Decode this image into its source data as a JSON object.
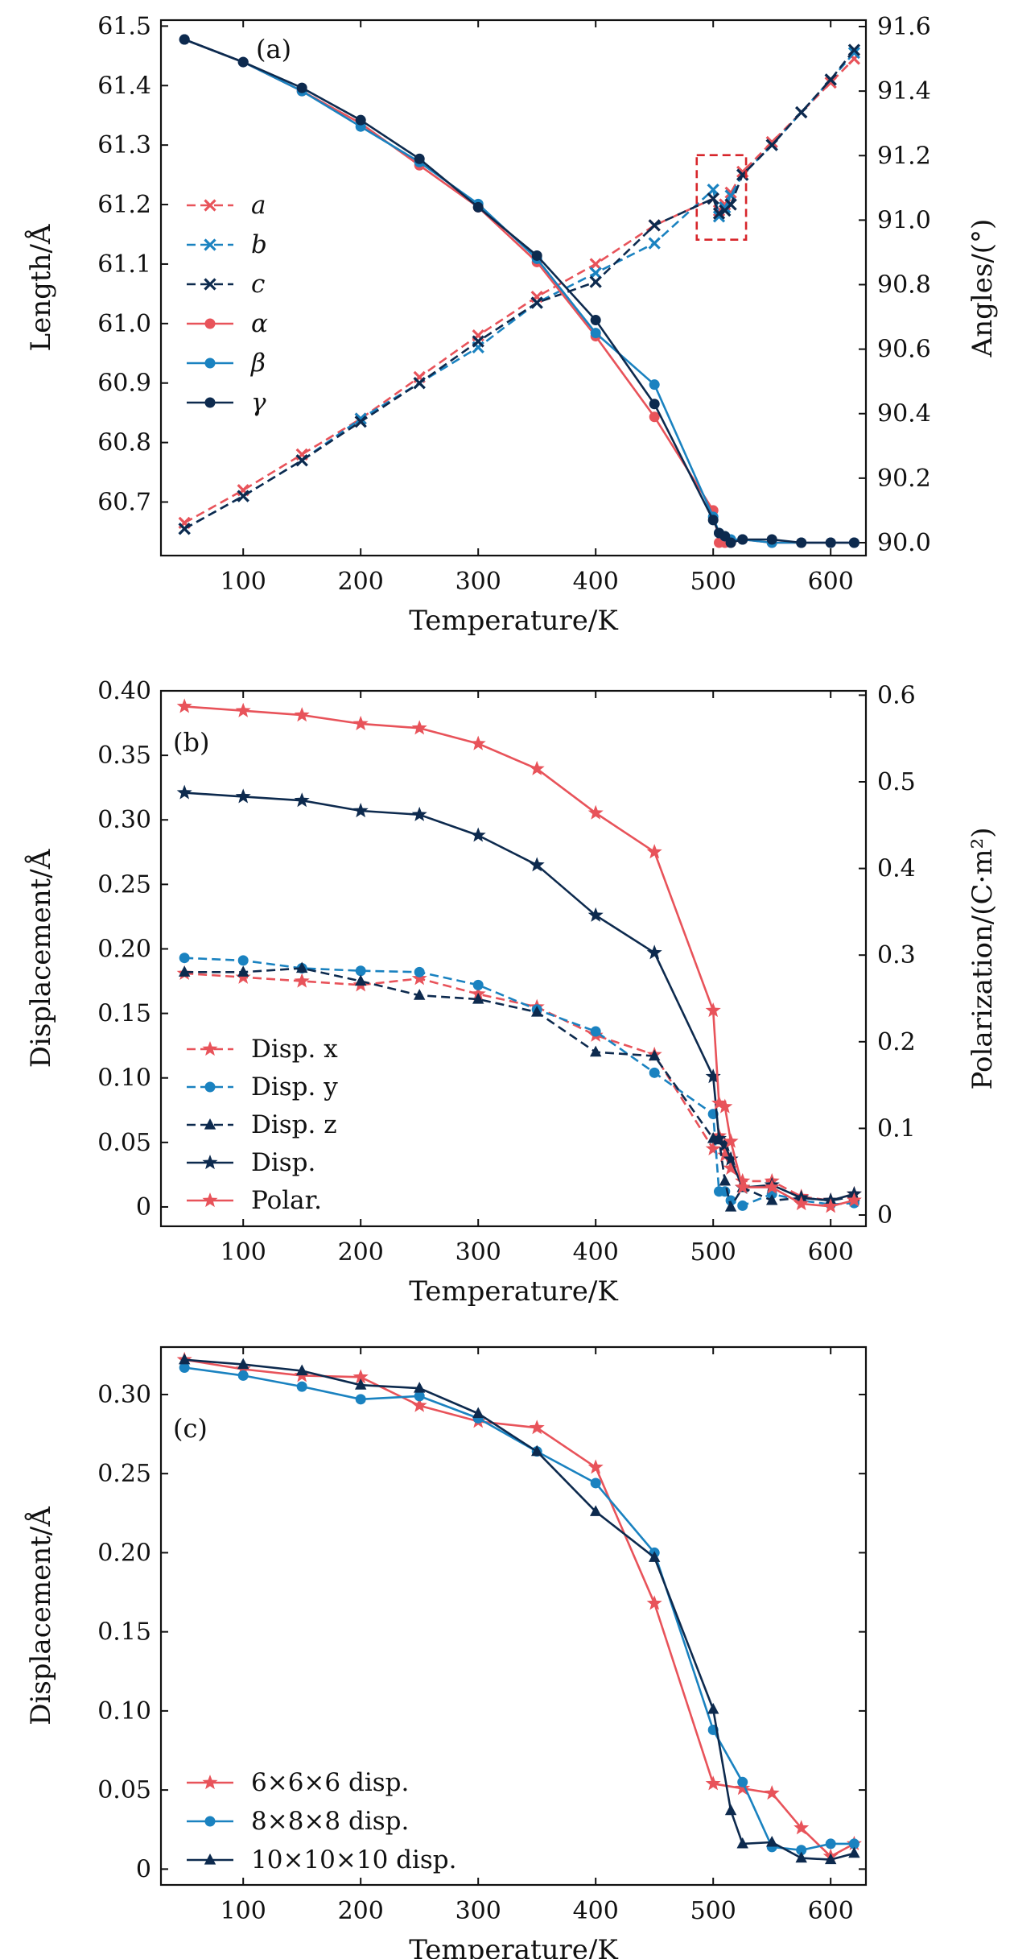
{
  "colors": {
    "red": "#e8535a",
    "blue": "#1a82c0",
    "navy": "#0d2a4e",
    "box": "#d7262b"
  },
  "chart_data": [
    {
      "type": "line",
      "panel_label": "(a)",
      "xlabel": "Temperature/K",
      "ylabel_left": "Length/Å",
      "ylabel_right": "Angles/(°)",
      "xlim": [
        30,
        630
      ],
      "ylim_left": [
        60.61,
        61.51
      ],
      "ylim_right": [
        89.96,
        91.62
      ],
      "xticks": [
        100,
        200,
        300,
        400,
        500,
        600
      ],
      "yticks_left": [
        "60.7",
        "60.8",
        "60.9",
        "61.0",
        "61.1",
        "61.2",
        "61.3",
        "61.4",
        "61.5"
      ],
      "yticks_right": [
        "90.0",
        "90.2",
        "90.4",
        "90.6",
        "90.8",
        "91.0",
        "91.2",
        "91.4",
        "91.6"
      ],
      "annotation_box": {
        "x": [
          486,
          528
        ],
        "y_left": [
          61.141,
          61.283
        ]
      },
      "legend_position": "center-left",
      "series": [
        {
          "name": "a",
          "axis": "left",
          "color": "#e8535a",
          "dash": true,
          "marker": "x",
          "x": [
            50,
            100,
            150,
            200,
            250,
            300,
            350,
            400,
            450,
            500,
            505,
            510,
            515,
            525,
            550,
            575,
            600,
            620
          ],
          "y": [
            60.665,
            60.72,
            60.78,
            60.84,
            60.91,
            60.98,
            61.045,
            61.1,
            61.165,
            61.21,
            61.19,
            61.2,
            61.22,
            61.255,
            61.305,
            61.355,
            61.405,
            61.445
          ]
        },
        {
          "name": "b",
          "axis": "left",
          "color": "#1a82c0",
          "dash": true,
          "marker": "x",
          "x": [
            50,
            100,
            150,
            200,
            250,
            300,
            350,
            400,
            450,
            500,
            505,
            510,
            515,
            525,
            550,
            575,
            600,
            620
          ],
          "y": [
            60.655,
            60.71,
            60.77,
            60.84,
            60.9,
            60.96,
            61.035,
            61.085,
            61.135,
            61.225,
            61.18,
            61.195,
            61.215,
            61.25,
            61.3,
            61.355,
            61.41,
            61.455
          ]
        },
        {
          "name": "c",
          "axis": "left",
          "color": "#0d2a4e",
          "dash": true,
          "marker": "x",
          "x": [
            50,
            100,
            150,
            200,
            250,
            300,
            350,
            400,
            450,
            500,
            505,
            510,
            515,
            525,
            550,
            575,
            600,
            620
          ],
          "y": [
            60.655,
            60.71,
            60.77,
            60.835,
            60.9,
            60.97,
            61.035,
            61.07,
            61.165,
            61.21,
            61.185,
            61.19,
            61.2,
            61.25,
            61.3,
            61.355,
            61.41,
            61.46
          ]
        },
        {
          "name": "α",
          "axis": "right",
          "color": "#e8535a",
          "dash": false,
          "marker": "circle",
          "x": [
            50,
            100,
            150,
            200,
            250,
            300,
            350,
            400,
            450,
            500,
            505,
            510,
            515,
            525,
            550,
            575,
            600,
            620
          ],
          "y": [
            91.56,
            91.49,
            91.4,
            91.3,
            91.17,
            91.04,
            90.87,
            90.64,
            90.39,
            90.1,
            90.0,
            90.0,
            90.0,
            90.01,
            90.0,
            90.0,
            90.0,
            90.0
          ]
        },
        {
          "name": "β",
          "axis": "right",
          "color": "#1a82c0",
          "dash": false,
          "marker": "circle",
          "x": [
            50,
            100,
            150,
            200,
            250,
            300,
            350,
            400,
            450,
            500,
            505,
            510,
            515,
            525,
            550,
            575,
            600,
            620
          ],
          "y": [
            91.56,
            91.49,
            91.4,
            91.29,
            91.18,
            91.05,
            90.88,
            90.65,
            90.49,
            90.08,
            90.03,
            90.02,
            90.01,
            90.01,
            90.0,
            90.0,
            90.0,
            90.0
          ]
        },
        {
          "name": "γ",
          "axis": "right",
          "color": "#0d2a4e",
          "dash": false,
          "marker": "circle",
          "x": [
            50,
            100,
            150,
            200,
            250,
            300,
            350,
            400,
            450,
            500,
            505,
            510,
            515,
            525,
            550,
            575,
            600,
            620
          ],
          "y": [
            91.56,
            91.49,
            91.41,
            91.31,
            91.19,
            91.04,
            90.89,
            90.69,
            90.43,
            90.07,
            90.03,
            90.02,
            90.0,
            90.01,
            90.01,
            90.0,
            90.0,
            90.0
          ]
        }
      ]
    },
    {
      "type": "line",
      "panel_label": "(b)",
      "xlabel": "Temperature/K",
      "ylabel_left": "Displacement/Å",
      "ylabel_right": "Polarization/(C·m²)",
      "xlim": [
        30,
        630
      ],
      "ylim_left": [
        -0.015,
        0.4
      ],
      "ylim_right": [
        -0.013,
        0.605
      ],
      "xticks": [
        100,
        200,
        300,
        400,
        500,
        600
      ],
      "yticks_left": [
        "0",
        "0.05",
        "0.10",
        "0.15",
        "0.20",
        "0.25",
        "0.30",
        "0.35",
        "0.40"
      ],
      "yticks_right": [
        "0",
        "0.1",
        "0.2",
        "0.3",
        "0.4",
        "0.5",
        "0.6"
      ],
      "legend_position": "center-left",
      "series": [
        {
          "name": "Disp. x",
          "axis": "left",
          "color": "#e8535a",
          "dash": true,
          "marker": "star",
          "x": [
            50,
            100,
            150,
            200,
            250,
            300,
            350,
            400,
            450,
            500,
            505,
            510,
            515,
            525,
            550,
            575,
            600,
            620
          ],
          "y": [
            0.181,
            0.178,
            0.175,
            0.172,
            0.177,
            0.165,
            0.155,
            0.133,
            0.118,
            0.045,
            0.055,
            0.04,
            0.03,
            0.02,
            0.02,
            0.008,
            0.005,
            0.01
          ]
        },
        {
          "name": "Disp. y",
          "axis": "left",
          "color": "#1a82c0",
          "dash": true,
          "marker": "circle",
          "x": [
            50,
            100,
            150,
            200,
            250,
            300,
            350,
            400,
            450,
            500,
            505,
            510,
            515,
            525,
            550,
            575,
            600,
            620
          ],
          "y": [
            0.193,
            0.191,
            0.185,
            0.183,
            0.182,
            0.172,
            0.153,
            0.136,
            0.104,
            0.072,
            0.012,
            0.012,
            0.005,
            0.001,
            0.01,
            0.005,
            0.002,
            0.003
          ]
        },
        {
          "name": "Disp. z",
          "axis": "left",
          "color": "#0d2a4e",
          "dash": true,
          "marker": "triangle",
          "x": [
            50,
            100,
            150,
            200,
            250,
            300,
            350,
            400,
            450,
            500,
            505,
            510,
            515,
            525,
            550,
            575,
            600,
            620
          ],
          "y": [
            0.182,
            0.182,
            0.185,
            0.175,
            0.164,
            0.161,
            0.151,
            0.12,
            0.117,
            0.053,
            0.052,
            0.02,
            0.0,
            0.015,
            0.005,
            0.007,
            0.005,
            0.008
          ]
        },
        {
          "name": "Disp.",
          "axis": "left",
          "color": "#0d2a4e",
          "dash": false,
          "marker": "star",
          "x": [
            50,
            100,
            150,
            200,
            250,
            300,
            350,
            400,
            450,
            500,
            505,
            510,
            515,
            525,
            550,
            575,
            600,
            620
          ],
          "y": [
            0.321,
            0.318,
            0.315,
            0.307,
            0.304,
            0.288,
            0.265,
            0.226,
            0.197,
            0.101,
            0.053,
            0.048,
            0.037,
            0.015,
            0.017,
            0.007,
            0.005,
            0.01
          ]
        },
        {
          "name": "Polar.",
          "axis": "right",
          "color": "#e8535a",
          "dash": false,
          "marker": "star",
          "x": [
            50,
            100,
            150,
            200,
            250,
            300,
            350,
            400,
            450,
            500,
            505,
            510,
            515,
            525,
            550,
            575,
            600,
            620
          ],
          "y": [
            0.587,
            0.582,
            0.577,
            0.567,
            0.562,
            0.544,
            0.515,
            0.464,
            0.419,
            0.236,
            0.129,
            0.125,
            0.085,
            0.032,
            0.032,
            0.013,
            0.01,
            0.017
          ]
        }
      ]
    },
    {
      "type": "line",
      "panel_label": "(c)",
      "xlabel": "Temperature/K",
      "ylabel_left": "Displacement/Å",
      "xlim": [
        30,
        630
      ],
      "ylim_left": [
        -0.01,
        0.33
      ],
      "xticks": [
        100,
        200,
        300,
        400,
        500,
        600
      ],
      "yticks_left": [
        "0",
        "0.05",
        "0.10",
        "0.15",
        "0.20",
        "0.25",
        "0.30"
      ],
      "legend_position": "lower-left",
      "series": [
        {
          "name": "6×6×6 disp.",
          "axis": "left",
          "color": "#e8535a",
          "dash": false,
          "marker": "star",
          "x": [
            50,
            100,
            150,
            200,
            250,
            300,
            350,
            400,
            450,
            500,
            525,
            550,
            575,
            600,
            620
          ],
          "y": [
            0.322,
            0.316,
            0.312,
            0.311,
            0.293,
            0.283,
            0.279,
            0.254,
            0.168,
            0.054,
            0.051,
            0.048,
            0.026,
            0.008,
            0.016
          ]
        },
        {
          "name": "8×8×8 disp.",
          "axis": "left",
          "color": "#1a82c0",
          "dash": false,
          "marker": "circle",
          "x": [
            50,
            100,
            150,
            200,
            250,
            300,
            350,
            400,
            450,
            500,
            525,
            550,
            575,
            600,
            620
          ],
          "y": [
            0.317,
            0.312,
            0.305,
            0.297,
            0.299,
            0.285,
            0.264,
            0.244,
            0.2,
            0.088,
            0.055,
            0.014,
            0.012,
            0.016,
            0.016
          ]
        },
        {
          "name": "10×10×10 disp.",
          "axis": "left",
          "color": "#0d2a4e",
          "dash": false,
          "marker": "triangle",
          "x": [
            50,
            100,
            150,
            200,
            250,
            300,
            350,
            400,
            450,
            500,
            515,
            525,
            550,
            575,
            600,
            620
          ],
          "y": [
            0.322,
            0.319,
            0.315,
            0.306,
            0.304,
            0.288,
            0.264,
            0.226,
            0.197,
            0.101,
            0.037,
            0.016,
            0.017,
            0.007,
            0.006,
            0.01
          ]
        }
      ]
    }
  ]
}
